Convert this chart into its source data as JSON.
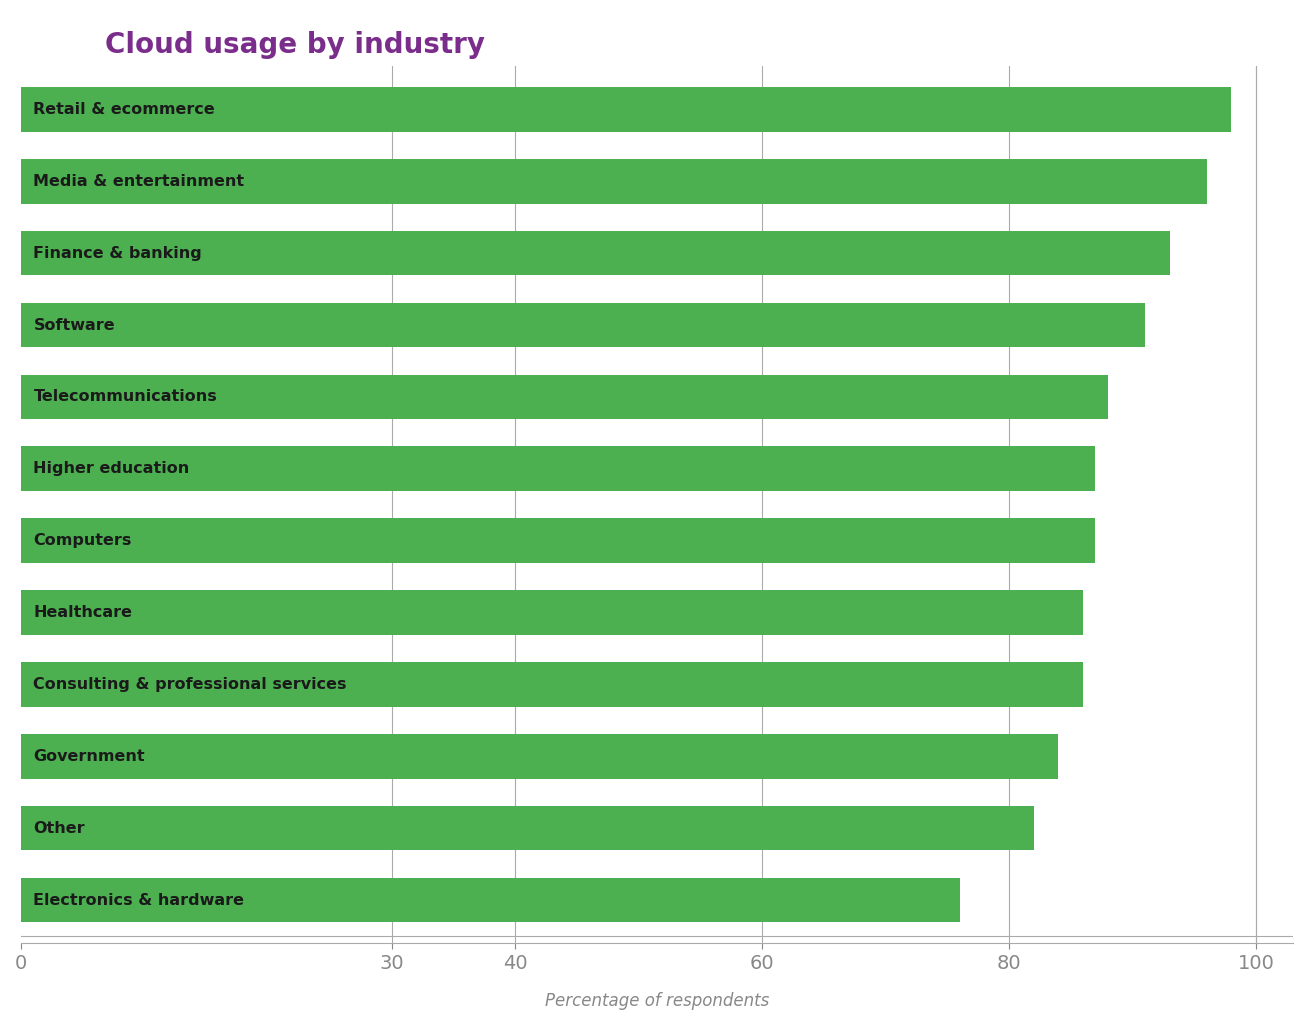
{
  "title": "Cloud usage by industry",
  "title_color": "#7B2D8B",
  "xlabel": "Percentage of respondents",
  "categories": [
    "Electronics & hardware",
    "Other",
    "Government",
    "Consulting & professional services",
    "Healthcare",
    "Computers",
    "Higher education",
    "Telecommunications",
    "Software",
    "Finance & banking",
    "Media & entertainment",
    "Retail & ecommerce"
  ],
  "values": [
    76,
    82,
    84,
    86,
    86,
    87,
    87,
    88,
    91,
    93,
    96,
    98
  ],
  "bar_color": "#4CAF50",
  "xlim": [
    0,
    103
  ],
  "xticks": [
    0,
    30,
    40,
    60,
    80,
    100
  ],
  "grid_color": "#aaaaaa",
  "background_color": "#ffffff",
  "label_color": "#1a1a1a",
  "xlabel_color": "#888888",
  "tick_color": "#888888",
  "title_fontsize": 20,
  "label_fontsize": 11.5,
  "xlabel_fontsize": 12,
  "tick_fontsize": 14
}
